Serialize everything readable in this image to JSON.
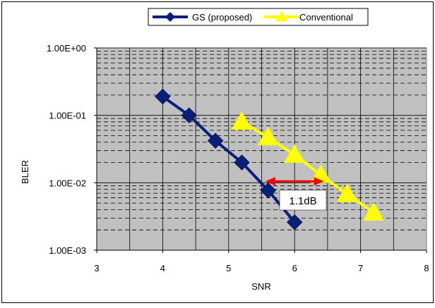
{
  "chart_data": {
    "type": "line",
    "xlabel": "SNR",
    "ylabel": "BLER",
    "xlim": [
      3,
      8
    ],
    "ylim": [
      0.001,
      1
    ],
    "y_scale": "log",
    "x_ticks": [
      "3",
      "4",
      "5",
      "6",
      "7",
      "8"
    ],
    "y_ticks": [
      "1.00E+00",
      "1.00E-01",
      "1.00E-02",
      "1.00E-03"
    ],
    "grid": true,
    "legend_position": "top-center",
    "series": [
      {
        "name": "GS (proposed)",
        "color": "#0a1f7a",
        "marker": "diamond",
        "x": [
          4.0,
          4.4,
          4.8,
          5.2,
          5.6,
          6.0
        ],
        "y": [
          0.19,
          0.1,
          0.042,
          0.02,
          0.0077,
          0.0026
        ]
      },
      {
        "name": "Conventional",
        "color": "#ffff00",
        "marker": "triangle",
        "x": [
          5.2,
          5.6,
          6.0,
          6.4,
          6.8,
          7.2
        ],
        "y": [
          0.08,
          0.047,
          0.026,
          0.013,
          0.0068,
          0.0036
        ]
      }
    ],
    "annotation": {
      "text": "1.1dB",
      "arrow_from_x": 5.6,
      "arrow_to_x": 6.4,
      "arrow_y": 0.0105,
      "arrow_color": "#ff0000"
    }
  }
}
